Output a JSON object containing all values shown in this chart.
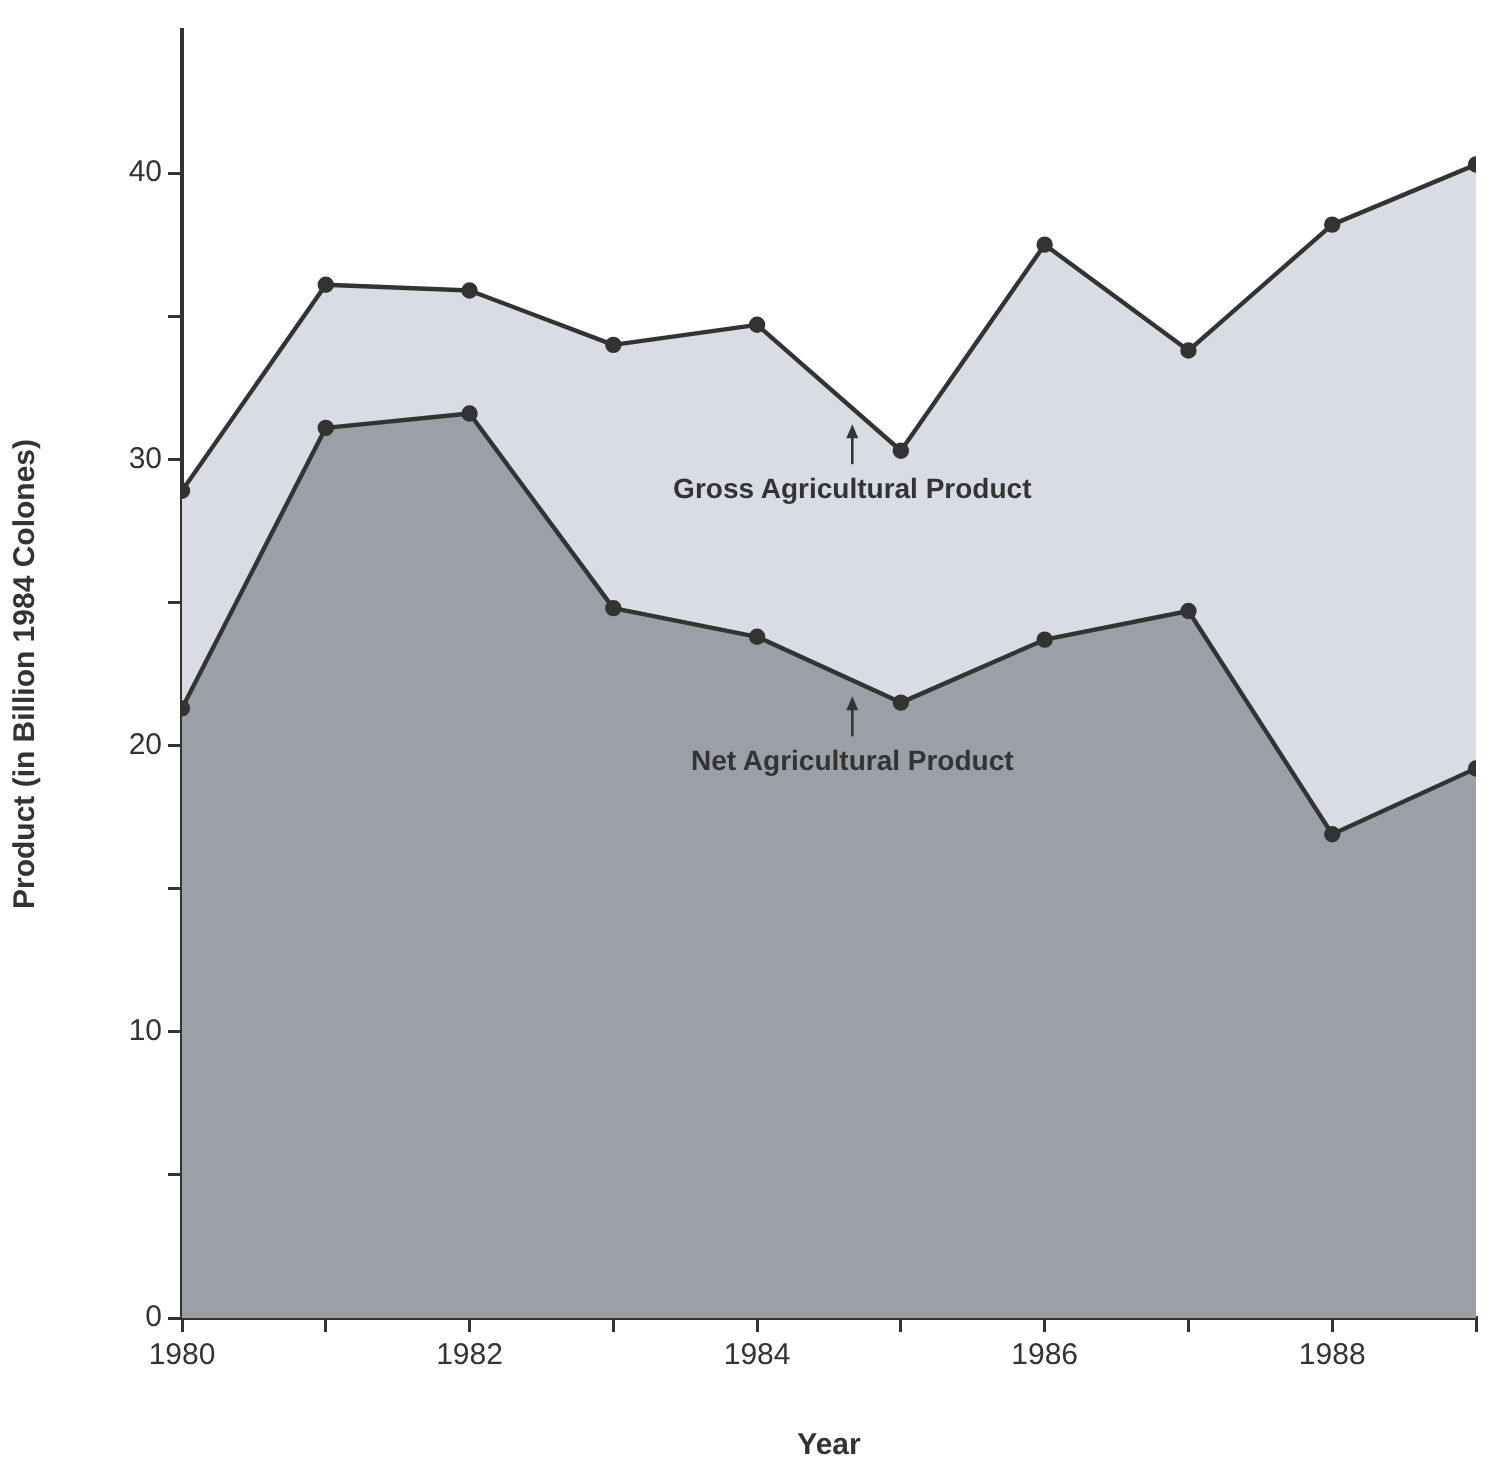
{
  "chart_data": {
    "type": "area",
    "xlabel": "Year",
    "ylabel": "Product (in Billion 1984 Colones)",
    "x": [
      1980,
      1981,
      1982,
      1983,
      1984,
      1985,
      1986,
      1987,
      1988,
      1989
    ],
    "series": [
      {
        "color": "#d9dce3",
        "values": [
          28.9,
          36.1,
          35.9,
          34.0,
          34.7,
          30.3,
          37.5,
          33.8,
          38.2,
          40.3
        ]
      },
      {
        "color": "#9b9fa6",
        "values": [
          21.3,
          31.1,
          31.6,
          24.8,
          23.8,
          21.5,
          23.7,
          24.7,
          16.9,
          19.2
        ]
      }
    ],
    "xlim": [
      1980,
      1989
    ],
    "xticks": [
      1980,
      {
        "value": 1981,
        "label": null
      },
      1982,
      {
        "value": 1983,
        "label": null
      },
      1984,
      {
        "value": 1985,
        "label": null
      },
      1986,
      {
        "value": 1987,
        "label": null
      },
      1988,
      {
        "value": 1989,
        "label": null
      }
    ],
    "ylim": [
      0,
      45
    ],
    "yticks": [
      0,
      {
        "value": 5,
        "label": null
      },
      10,
      {
        "value": 15,
        "label": null
      },
      20,
      {
        "value": 25,
        "label": null
      },
      30,
      {
        "value": 35,
        "label": null
      },
      40
    ],
    "marker": "circle",
    "annotations": [
      "Gross Agricultural Product",
      "Net Agricultural Product"
    ]
  }
}
